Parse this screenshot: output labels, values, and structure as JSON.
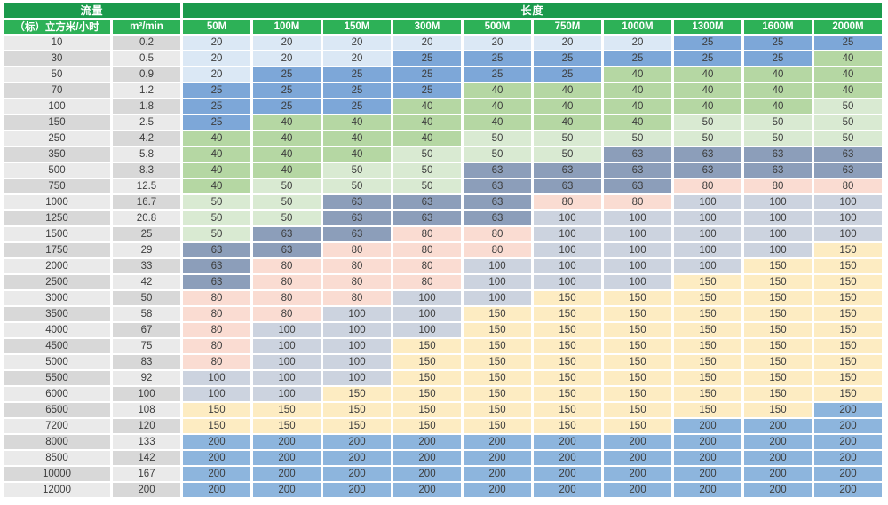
{
  "title": "pipe-sizing-table",
  "header": {
    "flow_group": "流量",
    "length_group": "长度",
    "flow_unit_hourly": "（标）立方米/小时",
    "flow_unit_minute": "m³/min",
    "length_cols": [
      "50M",
      "100M",
      "150M",
      "300M",
      "500M",
      "750M",
      "1000M",
      "1300M",
      "1600M",
      "2000M"
    ]
  },
  "colors": {
    "header_group_green": "#1b9a4c",
    "header_cell_green": "#2db157",
    "header_text": "#ffffff",
    "cell_text": "#3d3d3d",
    "flow_gray_light": "#eaeaea",
    "flow_gray_dark": "#d8d8d8",
    "value_20": "#dbe8f5",
    "value_25": "#7da7d8",
    "value_40": "#b5d7a3",
    "value_50": "#d9ead2",
    "value_63": "#8c9eba",
    "value_80": "#fadcd2",
    "value_100": "#ccd3df",
    "value_150": "#fdecc2",
    "value_200": "#8db5dd"
  },
  "chart_data": {
    "type": "table",
    "columns": [
      "（标）立方米/小时",
      "m³/min",
      "50M",
      "100M",
      "150M",
      "300M",
      "500M",
      "750M",
      "1000M",
      "1300M",
      "1600M",
      "2000M"
    ],
    "rows": [
      {
        "flow": "10",
        "m3min": "0.2",
        "values": [
          20,
          20,
          20,
          20,
          20,
          20,
          20,
          25,
          25,
          25
        ]
      },
      {
        "flow": "30",
        "m3min": "0.5",
        "values": [
          20,
          20,
          20,
          25,
          25,
          25,
          25,
          25,
          25,
          40
        ]
      },
      {
        "flow": "50",
        "m3min": "0.9",
        "values": [
          20,
          25,
          25,
          25,
          25,
          25,
          40,
          40,
          40,
          40
        ]
      },
      {
        "flow": "70",
        "m3min": "1.2",
        "values": [
          25,
          25,
          25,
          25,
          40,
          40,
          40,
          40,
          40,
          40
        ]
      },
      {
        "flow": "100",
        "m3min": "1.8",
        "values": [
          25,
          25,
          25,
          40,
          40,
          40,
          40,
          40,
          40,
          50
        ]
      },
      {
        "flow": "150",
        "m3min": "2.5",
        "values": [
          25,
          40,
          40,
          40,
          40,
          40,
          40,
          50,
          50,
          50
        ]
      },
      {
        "flow": "250",
        "m3min": "4.2",
        "values": [
          40,
          40,
          40,
          40,
          50,
          50,
          50,
          50,
          50,
          50
        ]
      },
      {
        "flow": "350",
        "m3min": "5.8",
        "values": [
          40,
          40,
          40,
          50,
          50,
          50,
          63,
          63,
          63,
          63
        ]
      },
      {
        "flow": "500",
        "m3min": "8.3",
        "values": [
          40,
          40,
          50,
          50,
          63,
          63,
          63,
          63,
          63,
          63
        ]
      },
      {
        "flow": "750",
        "m3min": "12.5",
        "values": [
          40,
          50,
          50,
          50,
          63,
          63,
          63,
          80,
          80,
          80
        ]
      },
      {
        "flow": "1000",
        "m3min": "16.7",
        "values": [
          50,
          50,
          63,
          63,
          63,
          80,
          80,
          100,
          100,
          100
        ]
      },
      {
        "flow": "1250",
        "m3min": "20.8",
        "values": [
          50,
          50,
          63,
          63,
          63,
          100,
          100,
          100,
          100,
          100
        ]
      },
      {
        "flow": "1500",
        "m3min": "25",
        "values": [
          50,
          63,
          63,
          80,
          80,
          100,
          100,
          100,
          100,
          100
        ]
      },
      {
        "flow": "1750",
        "m3min": "29",
        "values": [
          63,
          63,
          80,
          80,
          80,
          100,
          100,
          100,
          100,
          150
        ]
      },
      {
        "flow": "2000",
        "m3min": "33",
        "values": [
          63,
          80,
          80,
          80,
          100,
          100,
          100,
          100,
          150,
          150
        ]
      },
      {
        "flow": "2500",
        "m3min": "42",
        "values": [
          63,
          80,
          80,
          80,
          100,
          100,
          100,
          150,
          150,
          150
        ]
      },
      {
        "flow": "3000",
        "m3min": "50",
        "values": [
          80,
          80,
          80,
          100,
          100,
          150,
          150,
          150,
          150,
          150
        ]
      },
      {
        "flow": "3500",
        "m3min": "58",
        "values": [
          80,
          80,
          100,
          100,
          150,
          150,
          150,
          150,
          150,
          150
        ]
      },
      {
        "flow": "4000",
        "m3min": "67",
        "values": [
          80,
          100,
          100,
          100,
          150,
          150,
          150,
          150,
          150,
          150
        ]
      },
      {
        "flow": "4500",
        "m3min": "75",
        "values": [
          80,
          100,
          100,
          150,
          150,
          150,
          150,
          150,
          150,
          150
        ]
      },
      {
        "flow": "5000",
        "m3min": "83",
        "values": [
          80,
          100,
          100,
          150,
          150,
          150,
          150,
          150,
          150,
          150
        ]
      },
      {
        "flow": "5500",
        "m3min": "92",
        "values": [
          100,
          100,
          100,
          150,
          150,
          150,
          150,
          150,
          150,
          150
        ]
      },
      {
        "flow": "6000",
        "m3min": "100",
        "values": [
          100,
          100,
          150,
          150,
          150,
          150,
          150,
          150,
          150,
          150
        ]
      },
      {
        "flow": "6500",
        "m3min": "108",
        "values": [
          150,
          150,
          150,
          150,
          150,
          150,
          150,
          150,
          150,
          200
        ]
      },
      {
        "flow": "7200",
        "m3min": "120",
        "values": [
          150,
          150,
          150,
          150,
          150,
          150,
          150,
          200,
          200,
          200
        ]
      },
      {
        "flow": "8000",
        "m3min": "133",
        "values": [
          200,
          200,
          200,
          200,
          200,
          200,
          200,
          200,
          200,
          200
        ]
      },
      {
        "flow": "8500",
        "m3min": "142",
        "values": [
          200,
          200,
          200,
          200,
          200,
          200,
          200,
          200,
          200,
          200
        ]
      },
      {
        "flow": "10000",
        "m3min": "167",
        "values": [
          200,
          200,
          200,
          200,
          200,
          200,
          200,
          200,
          200,
          200
        ]
      },
      {
        "flow": "12000",
        "m3min": "200",
        "values": [
          200,
          200,
          200,
          200,
          200,
          200,
          200,
          200,
          200,
          200
        ]
      }
    ]
  }
}
